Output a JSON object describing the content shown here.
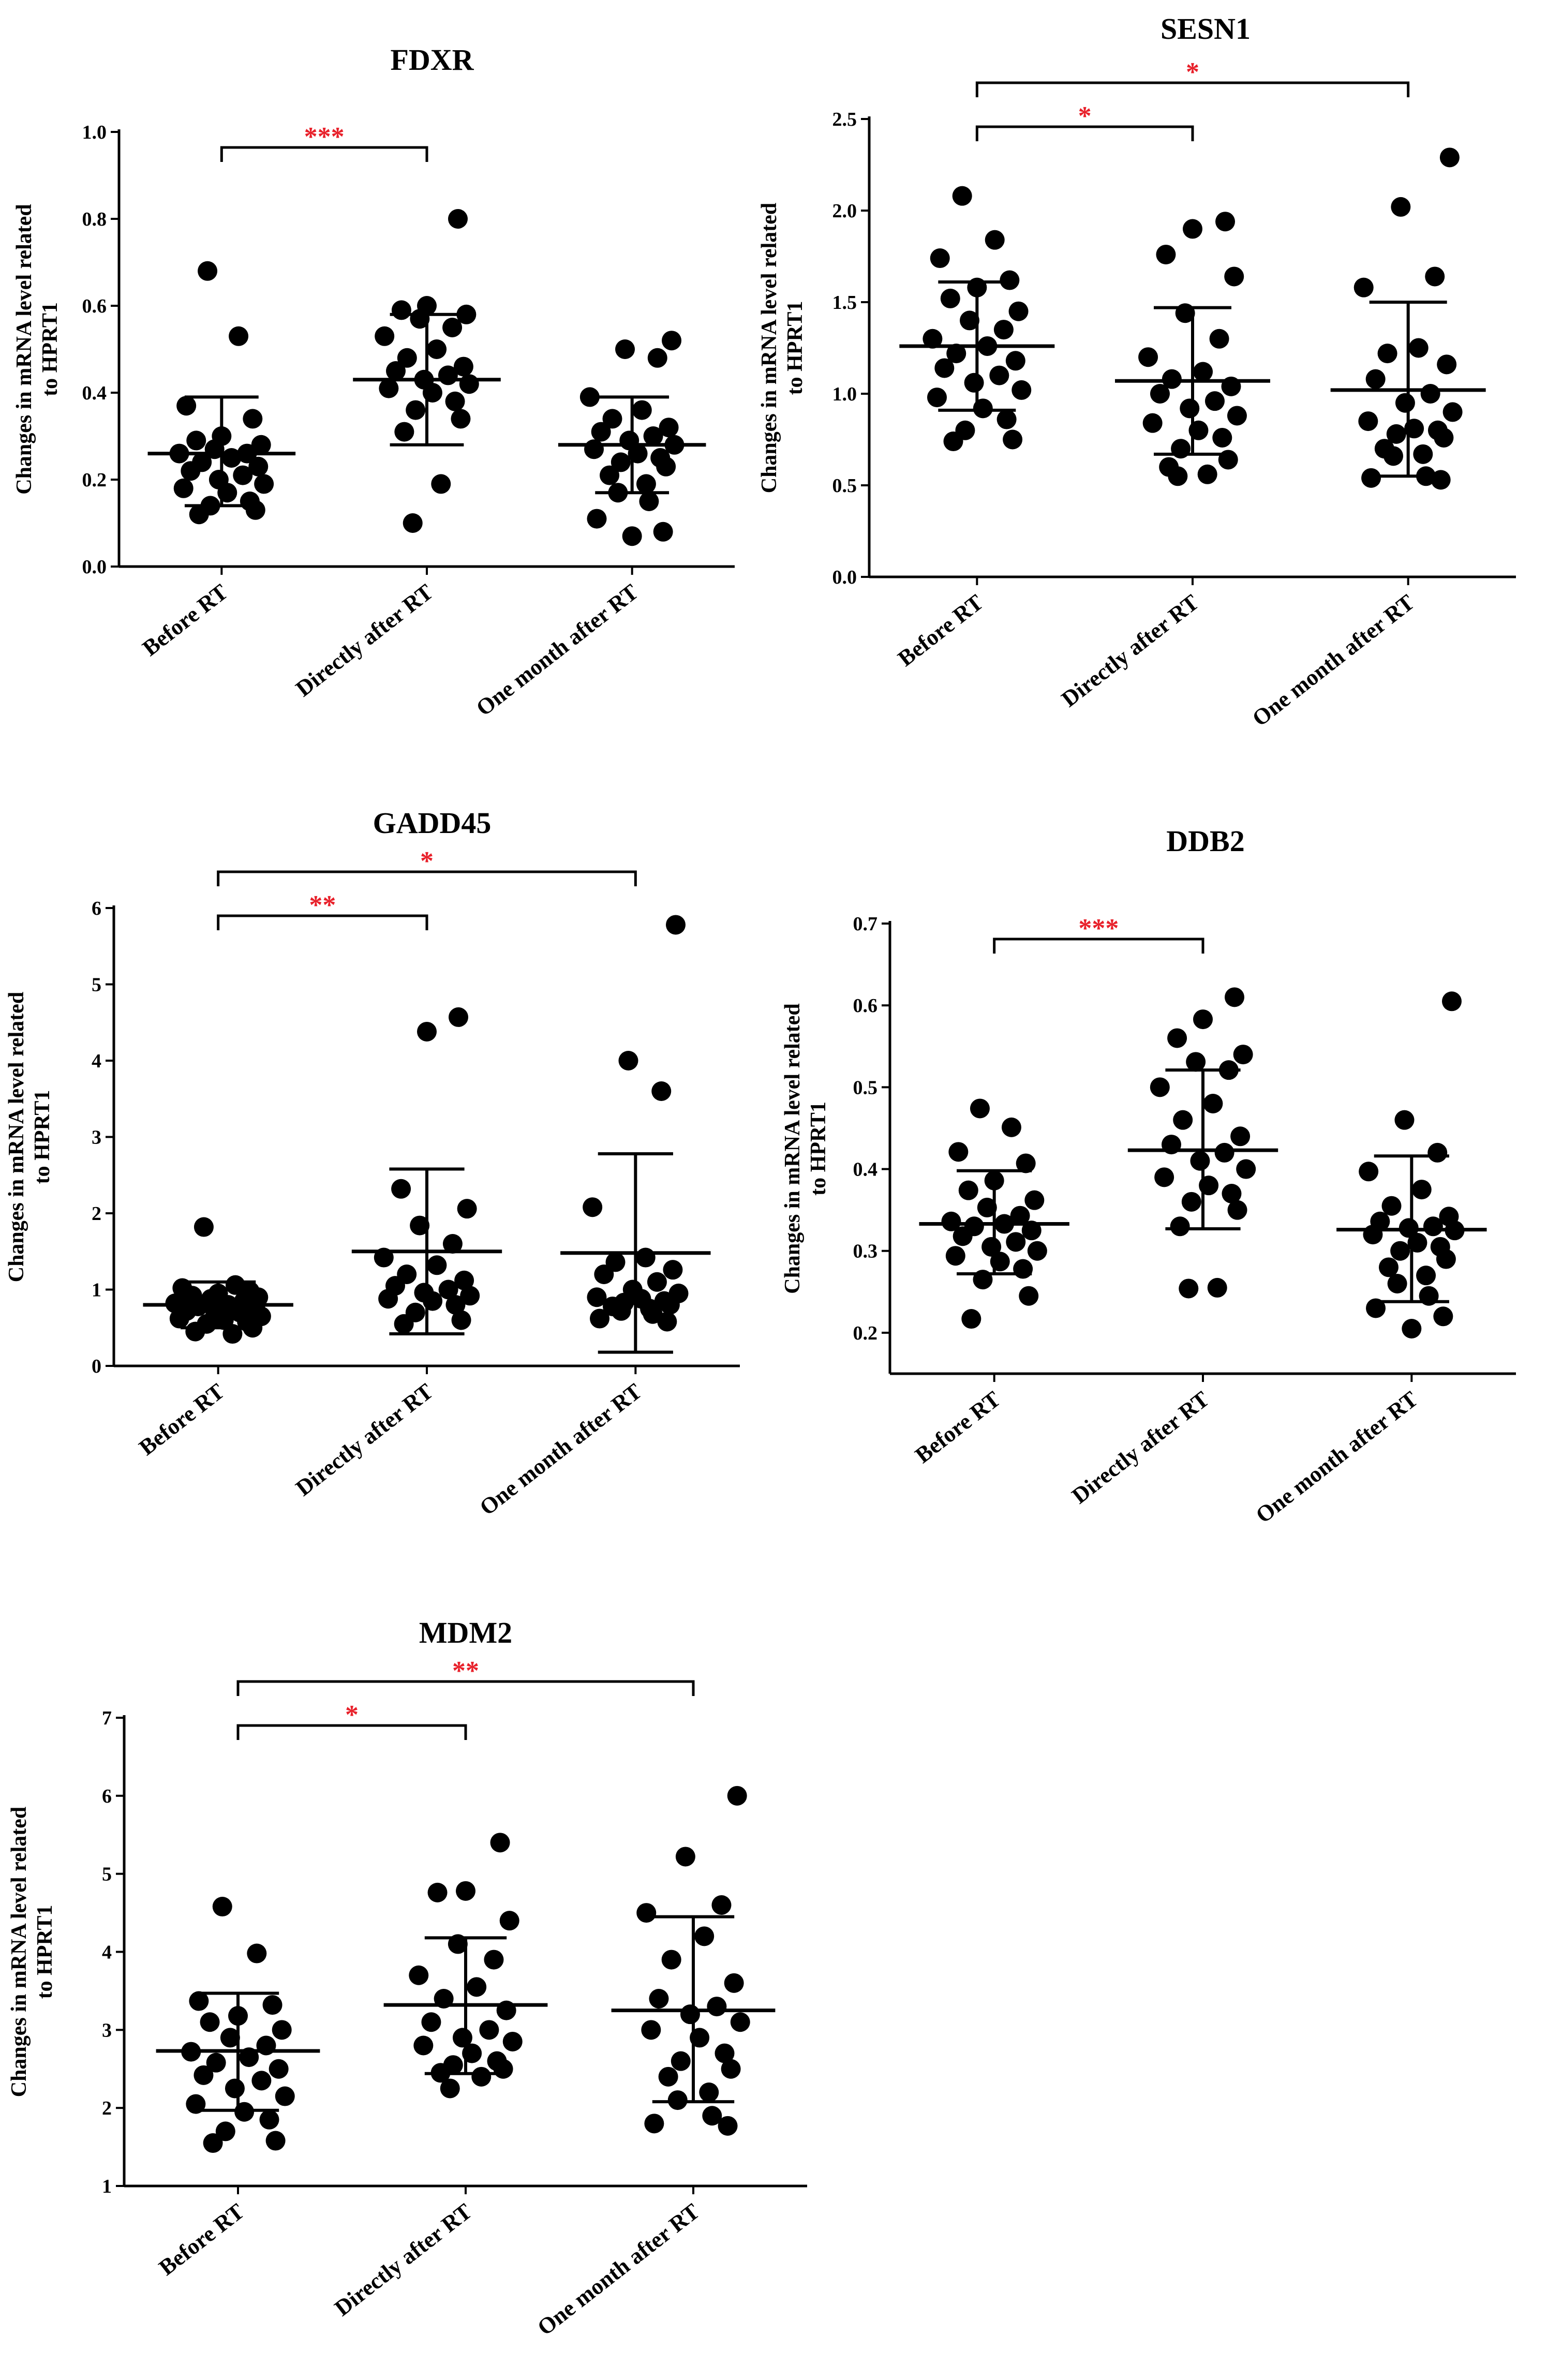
{
  "colors": {
    "ink": "#000000",
    "significance": "#e8202a"
  },
  "chart_data": [
    {
      "id": "fdxr",
      "type": "scatter",
      "title": "FDXR",
      "ylabel": [
        "Changes in mRNA level related",
        "to HPRT1"
      ],
      "ylim": [
        0,
        1.0
      ],
      "yticks": [
        0.0,
        0.2,
        0.4,
        0.6,
        0.8,
        1.0
      ],
      "yticklabels": [
        "0.0",
        "0.2",
        "0.4",
        "0.6",
        "0.8",
        "1.0"
      ],
      "categories": [
        "Before RT",
        "Directly after RT",
        "One month after RT"
      ],
      "groups": [
        {
          "name": "Before RT",
          "mean": 0.26,
          "sd_low": 0.14,
          "sd_high": 0.39,
          "values": [
            0.68,
            0.53,
            0.37,
            0.34,
            0.3,
            0.29,
            0.28,
            0.27,
            0.26,
            0.26,
            0.25,
            0.24,
            0.23,
            0.22,
            0.21,
            0.2,
            0.19,
            0.18,
            0.17,
            0.15,
            0.14,
            0.13,
            0.12
          ]
        },
        {
          "name": "Directly after RT",
          "mean": 0.43,
          "sd_low": 0.28,
          "sd_high": 0.58,
          "values": [
            0.8,
            0.6,
            0.59,
            0.58,
            0.57,
            0.55,
            0.53,
            0.5,
            0.48,
            0.46,
            0.45,
            0.44,
            0.43,
            0.42,
            0.41,
            0.4,
            0.38,
            0.36,
            0.34,
            0.31,
            0.19,
            0.1
          ]
        },
        {
          "name": "One month after RT",
          "mean": 0.28,
          "sd_low": 0.17,
          "sd_high": 0.39,
          "values": [
            0.52,
            0.5,
            0.48,
            0.39,
            0.36,
            0.34,
            0.32,
            0.31,
            0.3,
            0.29,
            0.28,
            0.27,
            0.26,
            0.25,
            0.24,
            0.23,
            0.21,
            0.19,
            0.17,
            0.15,
            0.11,
            0.08,
            0.07
          ]
        }
      ],
      "significance": [
        {
          "from": "Before RT",
          "to": "Directly after RT",
          "label": "***"
        }
      ]
    },
    {
      "id": "sesn1",
      "type": "scatter",
      "title": "SESN1",
      "ylabel": [
        "Changes in mRNA level related",
        "to HPRT1"
      ],
      "ylim": [
        0,
        2.5
      ],
      "yticks": [
        0.0,
        0.5,
        1.0,
        1.5,
        2.0,
        2.5
      ],
      "yticklabels": [
        "0.0",
        "0.5",
        "1.0",
        "1.5",
        "2.0",
        "2.5"
      ],
      "categories": [
        "Before RT",
        "Directly after RT",
        "One month after RT"
      ],
      "groups": [
        {
          "name": "Before RT",
          "mean": 1.26,
          "sd_low": 0.91,
          "sd_high": 1.61,
          "values": [
            2.08,
            1.84,
            1.74,
            1.62,
            1.58,
            1.52,
            1.45,
            1.4,
            1.35,
            1.3,
            1.26,
            1.22,
            1.18,
            1.14,
            1.1,
            1.06,
            1.02,
            0.98,
            0.92,
            0.86,
            0.8,
            0.75,
            0.74
          ]
        },
        {
          "name": "Directly after RT",
          "mean": 1.07,
          "sd_low": 0.67,
          "sd_high": 1.47,
          "values": [
            1.94,
            1.9,
            1.76,
            1.64,
            1.44,
            1.3,
            1.2,
            1.12,
            1.08,
            1.04,
            1.0,
            0.96,
            0.92,
            0.88,
            0.84,
            0.8,
            0.76,
            0.7,
            0.64,
            0.6,
            0.56,
            0.55
          ]
        },
        {
          "name": "One month after RT",
          "mean": 1.02,
          "sd_low": 0.55,
          "sd_high": 1.5,
          "values": [
            2.29,
            2.02,
            1.64,
            1.58,
            1.25,
            1.22,
            1.16,
            1.08,
            1.0,
            0.95,
            0.9,
            0.85,
            0.81,
            0.8,
            0.78,
            0.76,
            0.7,
            0.67,
            0.66,
            0.55,
            0.54,
            0.53
          ]
        }
      ],
      "significance": [
        {
          "from": "Before RT",
          "to": "Directly after RT",
          "label": "*"
        },
        {
          "from": "Before RT",
          "to": "One month after RT",
          "label": "*"
        }
      ]
    },
    {
      "id": "gadd45",
      "type": "scatter",
      "title": "GADD45",
      "ylabel": [
        "Changes in mRNA level related",
        "to HPRT1"
      ],
      "ylim": [
        0,
        6
      ],
      "yticks": [
        0,
        1,
        2,
        3,
        4,
        5,
        6
      ],
      "yticklabels": [
        "0",
        "1",
        "2",
        "3",
        "4",
        "5",
        "6"
      ],
      "categories": [
        "Before RT",
        "Directly after RT",
        "One month after RT"
      ],
      "groups": [
        {
          "name": "Before RT",
          "mean": 0.8,
          "sd_low": 0.5,
          "sd_high": 1.1,
          "values": [
            1.82,
            1.06,
            1.02,
            0.98,
            0.95,
            0.92,
            0.9,
            0.88,
            0.85,
            0.82,
            0.8,
            0.78,
            0.75,
            0.72,
            0.7,
            0.68,
            0.65,
            0.62,
            0.6,
            0.58,
            0.55,
            0.5,
            0.45,
            0.42
          ]
        },
        {
          "name": "Directly after RT",
          "mean": 1.5,
          "sd_low": 0.42,
          "sd_high": 2.58,
          "values": [
            4.57,
            4.38,
            2.32,
            2.06,
            1.84,
            1.6,
            1.42,
            1.32,
            1.2,
            1.12,
            1.05,
            1.0,
            0.96,
            0.92,
            0.88,
            0.85,
            0.8,
            0.7,
            0.6,
            0.55
          ]
        },
        {
          "name": "One month after RT",
          "mean": 1.48,
          "sd_low": 0.18,
          "sd_high": 2.78,
          "values": [
            5.78,
            4.0,
            3.6,
            2.08,
            1.42,
            1.36,
            1.26,
            1.2,
            1.1,
            1.0,
            0.95,
            0.9,
            0.88,
            0.85,
            0.83,
            0.8,
            0.78,
            0.75,
            0.72,
            0.68,
            0.62,
            0.58
          ]
        }
      ],
      "significance": [
        {
          "from": "Before RT",
          "to": "Directly after RT",
          "label": "**"
        },
        {
          "from": "Before RT",
          "to": "One month after RT",
          "label": "*"
        }
      ]
    },
    {
      "id": "ddb2",
      "type": "scatter",
      "title": "DDB2",
      "ylabel": [
        "Changes in mRNA level related",
        "to HPRT1"
      ],
      "ylim": [
        0.15,
        0.7
      ],
      "yticks": [
        0.2,
        0.3,
        0.4,
        0.5,
        0.6,
        0.7
      ],
      "yticklabels": [
        "0.2",
        "0.3",
        "0.4",
        "0.5",
        "0.6",
        "0.7"
      ],
      "categories": [
        "Before RT",
        "Directly after RT",
        "One month after RT"
      ],
      "groups": [
        {
          "name": "Before RT",
          "mean": 0.333,
          "sd_low": 0.272,
          "sd_high": 0.398,
          "values": [
            0.474,
            0.451,
            0.421,
            0.407,
            0.386,
            0.374,
            0.362,
            0.353,
            0.343,
            0.336,
            0.333,
            0.33,
            0.325,
            0.318,
            0.311,
            0.305,
            0.3,
            0.294,
            0.287,
            0.278,
            0.265,
            0.245,
            0.217
          ]
        },
        {
          "name": "Directly after RT",
          "mean": 0.423,
          "sd_low": 0.327,
          "sd_high": 0.521,
          "values": [
            0.61,
            0.583,
            0.56,
            0.54,
            0.531,
            0.521,
            0.5,
            0.48,
            0.46,
            0.44,
            0.43,
            0.42,
            0.41,
            0.4,
            0.39,
            0.38,
            0.37,
            0.36,
            0.35,
            0.33,
            0.255,
            0.254
          ]
        },
        {
          "name": "One month after RT",
          "mean": 0.326,
          "sd_low": 0.238,
          "sd_high": 0.416,
          "values": [
            0.605,
            0.46,
            0.42,
            0.397,
            0.375,
            0.355,
            0.342,
            0.336,
            0.33,
            0.328,
            0.325,
            0.32,
            0.31,
            0.305,
            0.3,
            0.29,
            0.28,
            0.27,
            0.26,
            0.245,
            0.23,
            0.22,
            0.205
          ]
        }
      ],
      "significance": [
        {
          "from": "Before RT",
          "to": "Directly after RT",
          "label": "***"
        }
      ]
    },
    {
      "id": "mdm2",
      "type": "scatter",
      "title": "MDM2",
      "ylabel": [
        "Changes in mRNA level related",
        "to HPRT1"
      ],
      "ylim": [
        1,
        7
      ],
      "yticks": [
        1,
        2,
        3,
        4,
        5,
        6,
        7
      ],
      "yticklabels": [
        "1",
        "2",
        "3",
        "4",
        "5",
        "6",
        "7"
      ],
      "categories": [
        "Before RT",
        "Directly after RT",
        "One month after RT"
      ],
      "groups": [
        {
          "name": "Before RT",
          "mean": 2.73,
          "sd_low": 1.97,
          "sd_high": 3.47,
          "values": [
            4.58,
            3.98,
            3.37,
            3.32,
            3.18,
            3.1,
            3.0,
            2.9,
            2.8,
            2.72,
            2.65,
            2.58,
            2.5,
            2.42,
            2.35,
            2.25,
            2.15,
            2.05,
            1.95,
            1.85,
            1.7,
            1.58,
            1.55
          ]
        },
        {
          "name": "Directly after RT",
          "mean": 3.32,
          "sd_low": 2.44,
          "sd_high": 4.18,
          "values": [
            5.4,
            4.78,
            4.76,
            4.4,
            4.1,
            3.9,
            3.7,
            3.55,
            3.4,
            3.25,
            3.1,
            3.0,
            2.9,
            2.85,
            2.8,
            2.7,
            2.6,
            2.55,
            2.5,
            2.45,
            2.4,
            2.25
          ]
        },
        {
          "name": "One month after RT",
          "mean": 3.25,
          "sd_low": 2.08,
          "sd_high": 4.45,
          "values": [
            6.0,
            5.22,
            4.6,
            4.5,
            4.2,
            3.9,
            3.6,
            3.4,
            3.3,
            3.2,
            3.1,
            3.0,
            2.9,
            2.7,
            2.6,
            2.5,
            2.4,
            2.2,
            2.1,
            1.9,
            1.8,
            1.77
          ]
        }
      ],
      "significance": [
        {
          "from": "Before RT",
          "to": "Directly after RT",
          "label": "*"
        },
        {
          "from": "Before RT",
          "to": "One month after RT",
          "label": "**"
        }
      ]
    }
  ]
}
